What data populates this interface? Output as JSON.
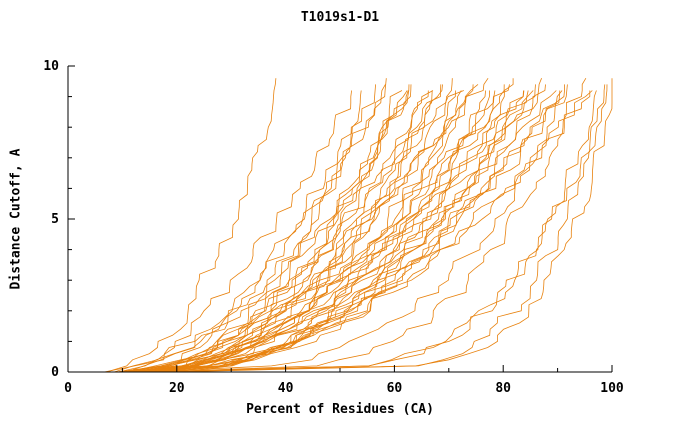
{
  "chart_data": {
    "type": "line",
    "title": "T1019s1-D1",
    "xlabel": "Percent of Residues (CA)",
    "ylabel": "Distance Cutoff, A",
    "xlim": [
      0,
      100
    ],
    "ylim": [
      0,
      10
    ],
    "x_major_ticks": [
      0,
      20,
      40,
      60,
      80,
      100
    ],
    "x_minor_step": 10,
    "y_major_ticks": [
      0,
      5,
      10
    ],
    "y_minor_step": 1,
    "line_color": "#e8820e",
    "axis_color": "#000000",
    "grid": false,
    "legend": "none",
    "series_format": "Each series approximates one model cutoff curve: x0 = percent of residues at cutoff 0 A, x1 = percent at ymax (~9.5 A), q = shape exponent of x(y) = x0 + (x1-x0)*(y/ymax)^q, seed = deterministic jitter seed",
    "series": [
      {
        "x0": 6,
        "x1": 38,
        "q": 0.45,
        "seed": 11
      },
      {
        "x0": 8,
        "x1": 55,
        "q": 0.5,
        "seed": 2
      },
      {
        "x0": 9,
        "x1": 56,
        "q": 0.42,
        "seed": 3
      },
      {
        "x0": 10,
        "x1": 58,
        "q": 0.5,
        "seed": 4
      },
      {
        "x0": 7,
        "x1": 59,
        "q": 0.55,
        "seed": 5
      },
      {
        "x0": 11,
        "x1": 60,
        "q": 0.38,
        "seed": 6
      },
      {
        "x0": 12,
        "x1": 61,
        "q": 0.5,
        "seed": 7
      },
      {
        "x0": 10,
        "x1": 62,
        "q": 0.45,
        "seed": 8
      },
      {
        "x0": 13,
        "x1": 63,
        "q": 0.52,
        "seed": 9
      },
      {
        "x0": 9,
        "x1": 64,
        "q": 0.58,
        "seed": 10
      },
      {
        "x0": 14,
        "x1": 65,
        "q": 0.44,
        "seed": 12
      },
      {
        "x0": 12,
        "x1": 66,
        "q": 0.5,
        "seed": 13
      },
      {
        "x0": 10,
        "x1": 67,
        "q": 0.36,
        "seed": 14
      },
      {
        "x0": 15,
        "x1": 68,
        "q": 0.5,
        "seed": 15
      },
      {
        "x0": 11,
        "x1": 69,
        "q": 0.55,
        "seed": 16
      },
      {
        "x0": 13,
        "x1": 70,
        "q": 0.45,
        "seed": 17
      },
      {
        "x0": 9,
        "x1": 71,
        "q": 0.5,
        "seed": 18
      },
      {
        "x0": 16,
        "x1": 72,
        "q": 0.38,
        "seed": 19
      },
      {
        "x0": 12,
        "x1": 73,
        "q": 0.5,
        "seed": 20
      },
      {
        "x0": 14,
        "x1": 74,
        "q": 0.56,
        "seed": 21
      },
      {
        "x0": 10,
        "x1": 75,
        "q": 0.44,
        "seed": 22
      },
      {
        "x0": 15,
        "x1": 76,
        "q": 0.5,
        "seed": 23
      },
      {
        "x0": 11,
        "x1": 77,
        "q": 0.36,
        "seed": 24
      },
      {
        "x0": 13,
        "x1": 78,
        "q": 0.5,
        "seed": 25
      },
      {
        "x0": 16,
        "x1": 79,
        "q": 0.55,
        "seed": 26
      },
      {
        "x0": 12,
        "x1": 80,
        "q": 0.45,
        "seed": 27
      },
      {
        "x0": 14,
        "x1": 81,
        "q": 0.5,
        "seed": 28
      },
      {
        "x0": 10,
        "x1": 82,
        "q": 0.38,
        "seed": 29
      },
      {
        "x0": 15,
        "x1": 83,
        "q": 0.5,
        "seed": 30
      },
      {
        "x0": 12,
        "x1": 84,
        "q": 0.56,
        "seed": 31
      },
      {
        "x0": 16,
        "x1": 85,
        "q": 0.44,
        "seed": 32
      },
      {
        "x0": 13,
        "x1": 86,
        "q": 0.5,
        "seed": 33
      },
      {
        "x0": 11,
        "x1": 87,
        "q": 0.36,
        "seed": 34
      },
      {
        "x0": 17,
        "x1": 88,
        "q": 0.5,
        "seed": 35
      },
      {
        "x0": 14,
        "x1": 89,
        "q": 0.55,
        "seed": 36
      },
      {
        "x0": 12,
        "x1": 90,
        "q": 0.45,
        "seed": 37
      },
      {
        "x0": 16,
        "x1": 91,
        "q": 0.5,
        "seed": 38
      },
      {
        "x0": 13,
        "x1": 92,
        "q": 0.3,
        "seed": 39
      },
      {
        "x0": 18,
        "x1": 93,
        "q": 0.5,
        "seed": 40
      },
      {
        "x0": 15,
        "x1": 94,
        "q": 0.25,
        "seed": 41
      },
      {
        "x0": 12,
        "x1": 95,
        "q": 0.45,
        "seed": 42
      },
      {
        "x0": 17,
        "x1": 96,
        "q": 0.5,
        "seed": 43
      },
      {
        "x0": 14,
        "x1": 97,
        "q": 0.18,
        "seed": 44
      },
      {
        "x0": 19,
        "x1": 98,
        "q": 0.15,
        "seed": 45
      },
      {
        "x0": 15,
        "x1": 99,
        "q": 0.2,
        "seed": 46
      },
      {
        "x0": 13,
        "x1": 100,
        "q": 0.13,
        "seed": 47
      },
      {
        "x0": 8,
        "x1": 52,
        "q": 0.6,
        "seed": 48
      },
      {
        "x0": 20,
        "x1": 85,
        "q": 0.5,
        "seed": 49
      }
    ]
  }
}
